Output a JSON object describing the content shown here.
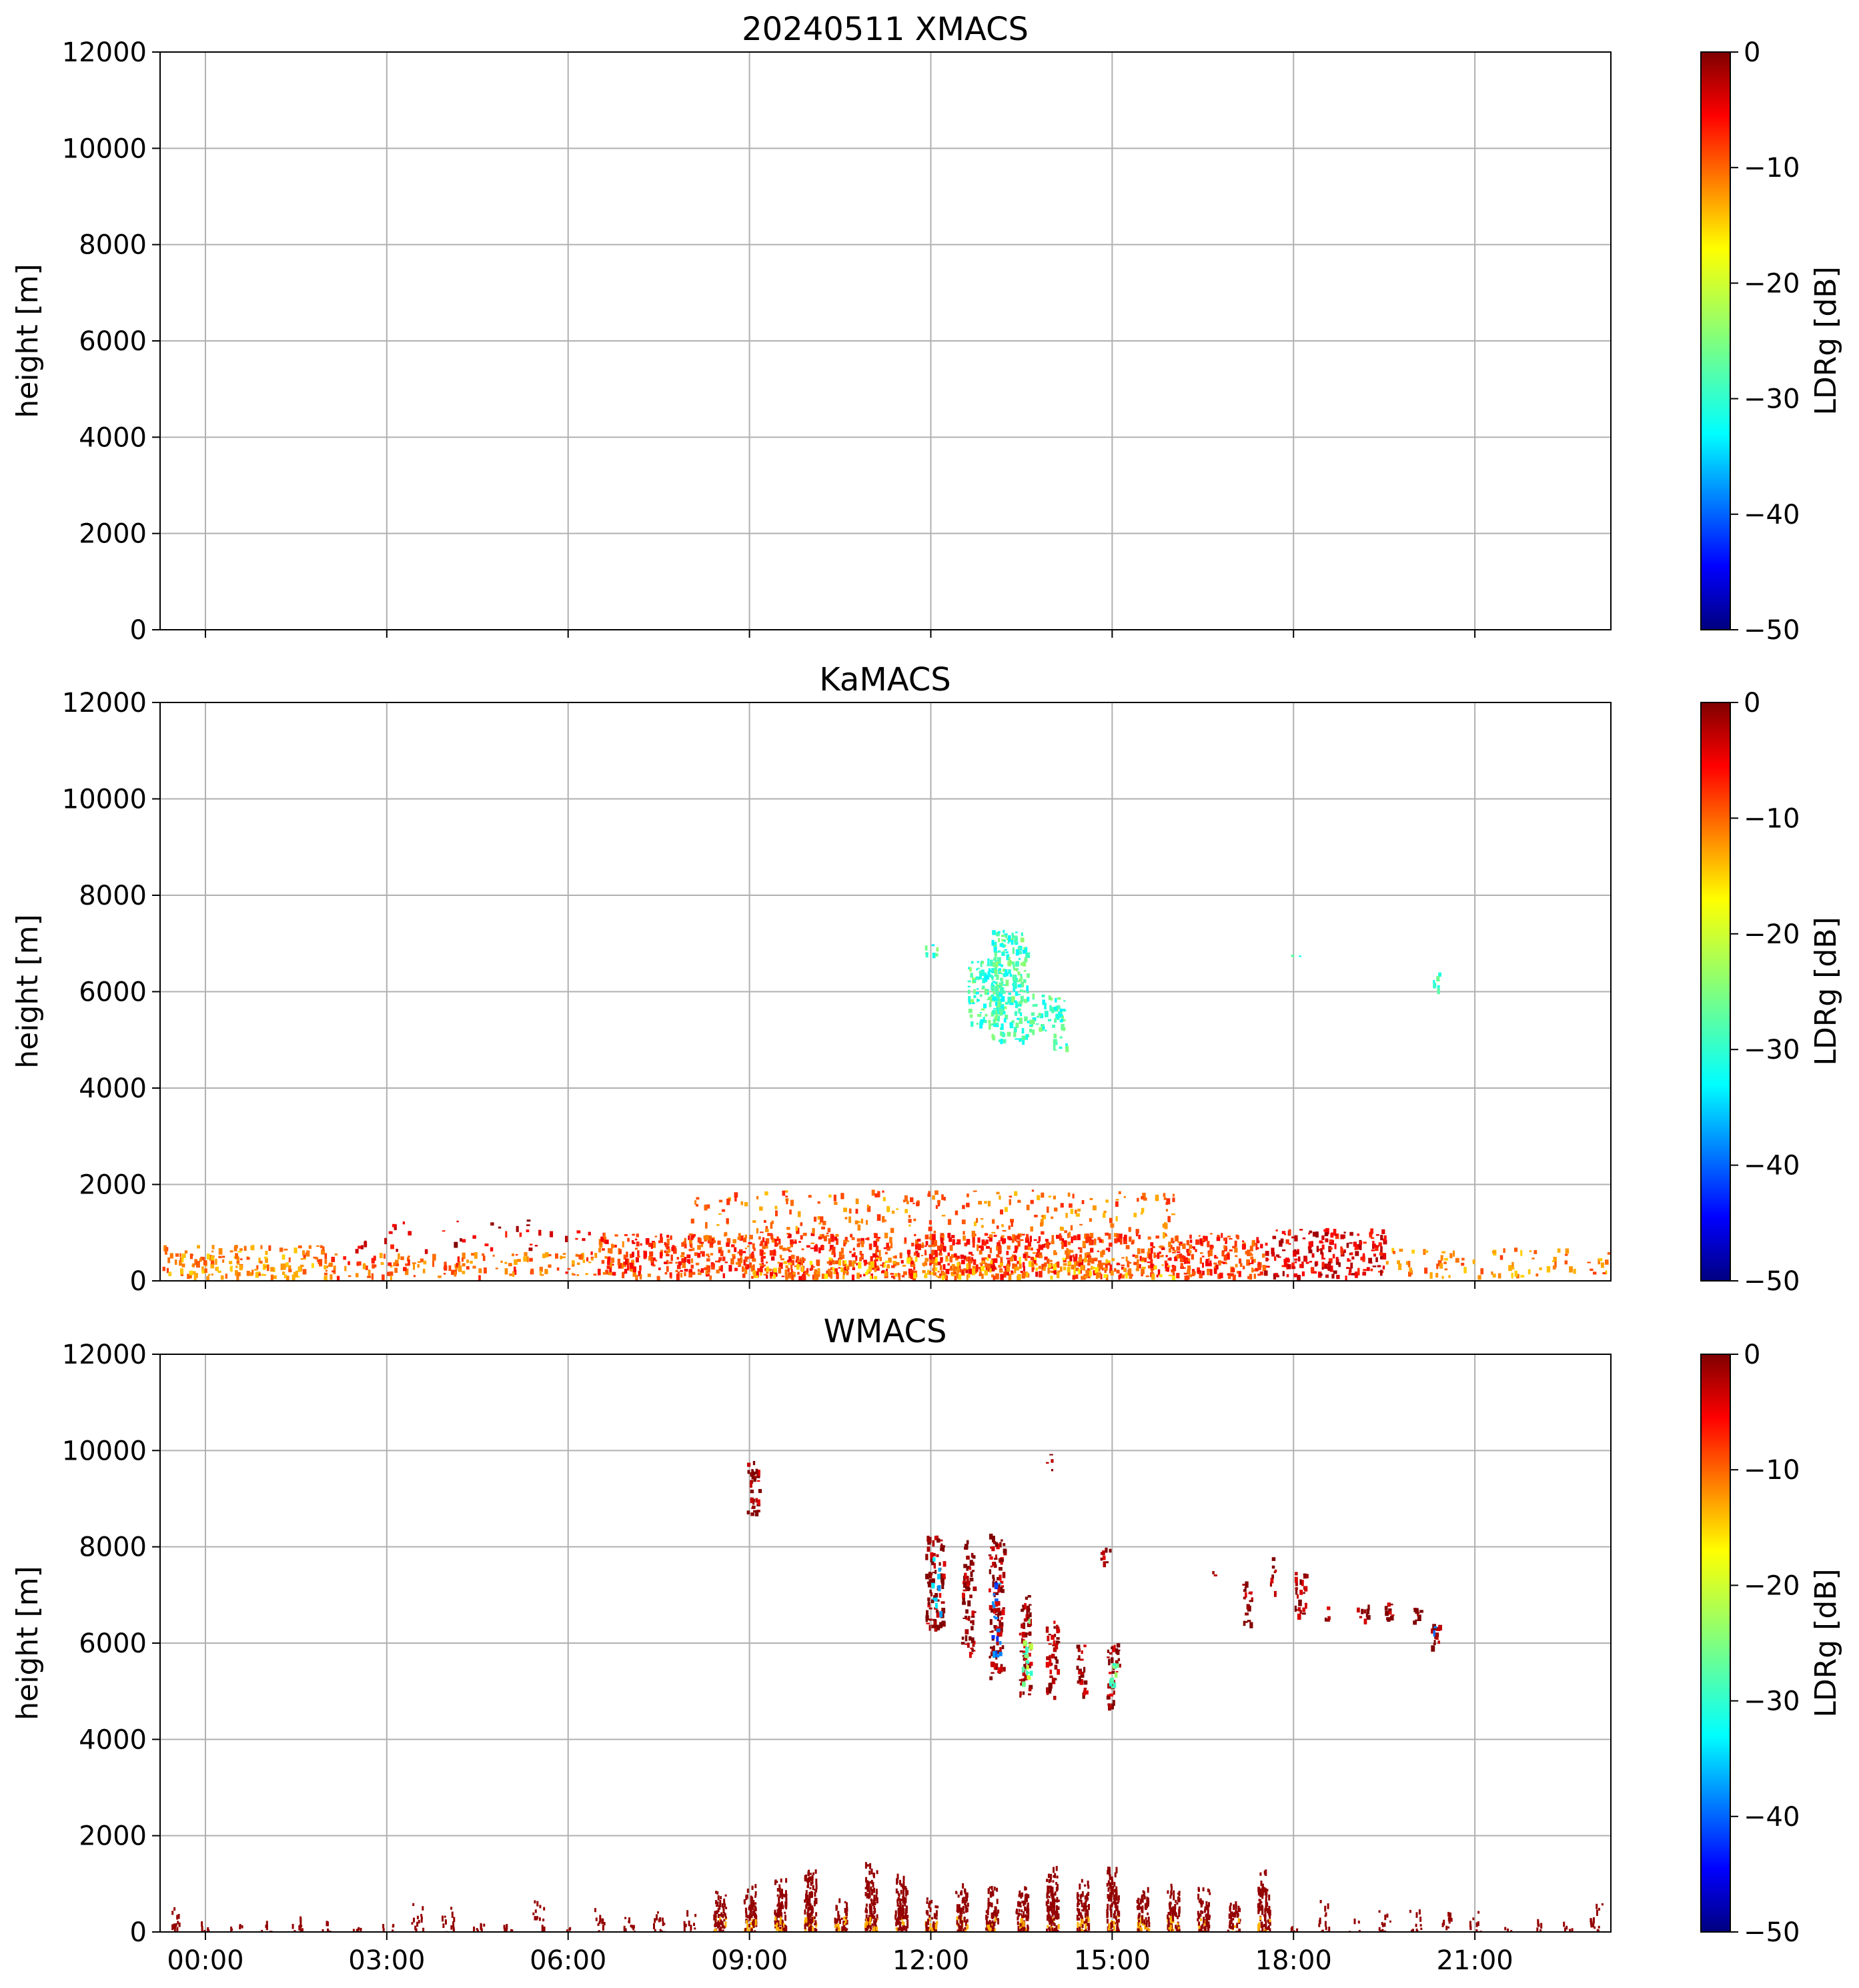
{
  "chart_data": [
    {
      "type": "heatmap",
      "title": "20240511 XMACS",
      "xlabel": "",
      "ylabel": "height [m]",
      "x_ticks": [
        "00:00",
        "03:00",
        "06:00",
        "09:00",
        "12:00",
        "15:00",
        "18:00",
        "21:00"
      ],
      "x_tick_hours": [
        0,
        3,
        6,
        9,
        12,
        15,
        18,
        21
      ],
      "x_tick_labels_shown": false,
      "xlim_hours": [
        -0.75,
        23.25
      ],
      "ylim": [
        0,
        12000
      ],
      "y_ticks": [
        0,
        2000,
        4000,
        6000,
        8000,
        10000,
        12000
      ],
      "grid": true,
      "colorbar": {
        "label": "LDRg [dB]",
        "range": [
          -50,
          0
        ],
        "ticks": [
          0,
          -10,
          -20,
          -30,
          -40,
          -50
        ],
        "tick_labels": [
          "0",
          "−10",
          "−20",
          "−30",
          "−40",
          "−50"
        ],
        "colormap": "jet"
      },
      "regions": []
    },
    {
      "type": "heatmap",
      "title": "KaMACS",
      "xlabel": "",
      "ylabel": "height [m]",
      "x_ticks": [
        "00:00",
        "03:00",
        "06:00",
        "09:00",
        "12:00",
        "15:00",
        "18:00",
        "21:00"
      ],
      "x_tick_hours": [
        0,
        3,
        6,
        9,
        12,
        15,
        18,
        21
      ],
      "x_tick_labels_shown": false,
      "xlim_hours": [
        -0.75,
        23.25
      ],
      "ylim": [
        0,
        12000
      ],
      "y_ticks": [
        0,
        2000,
        4000,
        6000,
        8000,
        10000,
        12000
      ],
      "grid": true,
      "colorbar": {
        "label": "LDRg [dB]",
        "range": [
          -50,
          0
        ],
        "ticks": [
          0,
          -10,
          -20,
          -30,
          -40,
          -50
        ],
        "tick_labels": [
          "0",
          "−10",
          "−20",
          "−30",
          "−40",
          "−50"
        ],
        "colormap": "jet"
      },
      "regions": [
        {
          "t0": -0.75,
          "t1": 2.0,
          "h0": 100,
          "h1": 750,
          "ldr": -13,
          "density": 0.55
        },
        {
          "t0": 2.0,
          "t1": 6.5,
          "h0": 100,
          "h1": 600,
          "ldr": -11,
          "density": 0.4
        },
        {
          "t0": 2.0,
          "t1": 6.5,
          "h0": 600,
          "h1": 1300,
          "ldr": -4,
          "density": 0.08
        },
        {
          "t0": 6.5,
          "t1": 17.5,
          "h0": 100,
          "h1": 1000,
          "ldr": -9,
          "density": 0.75
        },
        {
          "t0": 8.0,
          "t1": 16.0,
          "h0": 1000,
          "h1": 1900,
          "ldr": -12,
          "density": 0.18
        },
        {
          "t0": 9.0,
          "t1": 16.0,
          "h0": 100,
          "h1": 500,
          "ldr": -14,
          "density": 0.45
        },
        {
          "t0": 17.5,
          "t1": 19.5,
          "h0": 100,
          "h1": 1100,
          "ldr": -5,
          "density": 0.6
        },
        {
          "t0": 19.5,
          "t1": 23.25,
          "h0": 100,
          "h1": 700,
          "ldr": -13,
          "density": 0.22
        },
        {
          "t0": 11.9,
          "t1": 12.1,
          "h0": 6800,
          "h1": 7100,
          "ldr": -28,
          "density": 0.7
        },
        {
          "t0": 12.6,
          "t1": 13.2,
          "h0": 5300,
          "h1": 6700,
          "ldr": -28,
          "density": 0.85
        },
        {
          "t0": 13.0,
          "t1": 13.6,
          "h0": 5000,
          "h1": 7300,
          "ldr": -28,
          "density": 0.9
        },
        {
          "t0": 13.6,
          "t1": 14.0,
          "h0": 5200,
          "h1": 6000,
          "ldr": -28,
          "density": 0.6
        },
        {
          "t0": 14.0,
          "t1": 14.25,
          "h0": 4800,
          "h1": 5900,
          "ldr": -28,
          "density": 0.85
        },
        {
          "t0": 20.3,
          "t1": 20.4,
          "h0": 6050,
          "h1": 6450,
          "ldr": -28,
          "density": 0.9
        },
        {
          "t0": 17.9,
          "t1": 18.1,
          "h0": 6700,
          "h1": 6800,
          "ldr": -28,
          "density": 0.5
        }
      ]
    },
    {
      "type": "heatmap",
      "title": "WMACS",
      "xlabel": "",
      "ylabel": "height [m]",
      "x_ticks": [
        "00:00",
        "03:00",
        "06:00",
        "09:00",
        "12:00",
        "15:00",
        "18:00",
        "21:00"
      ],
      "x_tick_hours": [
        0,
        3,
        6,
        9,
        12,
        15,
        18,
        21
      ],
      "x_tick_labels_shown": true,
      "xlim_hours": [
        -0.75,
        23.25
      ],
      "ylim": [
        0,
        12000
      ],
      "y_ticks": [
        0,
        2000,
        4000,
        6000,
        8000,
        10000,
        12000
      ],
      "grid": true,
      "colorbar": {
        "label": "LDRg [dB]",
        "range": [
          -50,
          0
        ],
        "ticks": [
          0,
          -10,
          -20,
          -30,
          -40,
          -50
        ],
        "tick_labels": [
          "0",
          "−10",
          "−20",
          "−30",
          "−40",
          "−50"
        ],
        "colormap": "jet"
      },
      "regions": [
        {
          "t0": 8.95,
          "t1": 9.15,
          "h0": 8700,
          "h1": 9800,
          "ldr": -1,
          "density": 0.9
        },
        {
          "t0": 11.9,
          "t1": 12.2,
          "h0": 6300,
          "h1": 8300,
          "ldr": -1,
          "density": 0.85
        },
        {
          "t0": 12.0,
          "t1": 12.15,
          "h0": 6500,
          "h1": 7800,
          "ldr": -35,
          "density": 0.35
        },
        {
          "t0": 12.5,
          "t1": 12.7,
          "h0": 5800,
          "h1": 8200,
          "ldr": -1,
          "density": 0.85
        },
        {
          "t0": 12.95,
          "t1": 13.2,
          "h0": 5300,
          "h1": 8300,
          "ldr": -1,
          "density": 0.85
        },
        {
          "t0": 13.0,
          "t1": 13.15,
          "h0": 5600,
          "h1": 7600,
          "ldr": -38,
          "density": 0.35
        },
        {
          "t0": 13.45,
          "t1": 13.65,
          "h0": 4900,
          "h1": 7000,
          "ldr": -1,
          "density": 0.85
        },
        {
          "t0": 13.5,
          "t1": 13.65,
          "h0": 5200,
          "h1": 6600,
          "ldr": -25,
          "density": 0.6
        },
        {
          "t0": 13.9,
          "t1": 14.1,
          "h0": 4900,
          "h1": 6500,
          "ldr": -1,
          "density": 0.85
        },
        {
          "t0": 14.4,
          "t1": 14.55,
          "h0": 4900,
          "h1": 6000,
          "ldr": -1,
          "density": 0.85
        },
        {
          "t0": 14.8,
          "t1": 14.95,
          "h0": 7600,
          "h1": 8000,
          "ldr": -1,
          "density": 0.85
        },
        {
          "t0": 14.9,
          "t1": 15.1,
          "h0": 4700,
          "h1": 6000,
          "ldr": -1,
          "density": 0.85
        },
        {
          "t0": 14.95,
          "t1": 15.1,
          "h0": 5000,
          "h1": 5800,
          "ldr": -27,
          "density": 0.5
        },
        {
          "t0": 16.6,
          "t1": 16.75,
          "h0": 7400,
          "h1": 7500,
          "ldr": -1,
          "density": 0.7
        },
        {
          "t0": 17.15,
          "t1": 17.3,
          "h0": 6400,
          "h1": 7300,
          "ldr": -1,
          "density": 0.8
        },
        {
          "t0": 17.6,
          "t1": 17.7,
          "h0": 7000,
          "h1": 7800,
          "ldr": -1,
          "density": 0.6
        },
        {
          "t0": 18.0,
          "t1": 18.2,
          "h0": 6600,
          "h1": 7500,
          "ldr": -1,
          "density": 0.85
        },
        {
          "t0": 18.5,
          "t1": 18.6,
          "h0": 6500,
          "h1": 6900,
          "ldr": -1,
          "density": 0.7
        },
        {
          "t0": 19.0,
          "t1": 19.25,
          "h0": 6500,
          "h1": 6800,
          "ldr": -1,
          "density": 0.8
        },
        {
          "t0": 19.5,
          "t1": 19.7,
          "h0": 6500,
          "h1": 6900,
          "ldr": -1,
          "density": 0.8
        },
        {
          "t0": 19.9,
          "t1": 20.1,
          "h0": 6400,
          "h1": 6800,
          "ldr": -1,
          "density": 0.8
        },
        {
          "t0": 20.25,
          "t1": 20.4,
          "h0": 5950,
          "h1": 6550,
          "ldr": -1,
          "density": 0.85
        },
        {
          "t0": 20.3,
          "t1": 20.38,
          "h0": 6000,
          "h1": 6400,
          "ldr": -40,
          "density": 0.4
        },
        {
          "t0": 13.9,
          "t1": 14.0,
          "h0": 9500,
          "h1": 9950,
          "ldr": -1,
          "density": 0.6
        }
      ],
      "surface_columns": {
        "start_hour": -0.6,
        "step_hours": 0.5,
        "end_hour": 23.0,
        "width_hours": 0.2,
        "ldr": -1
      }
    }
  ]
}
